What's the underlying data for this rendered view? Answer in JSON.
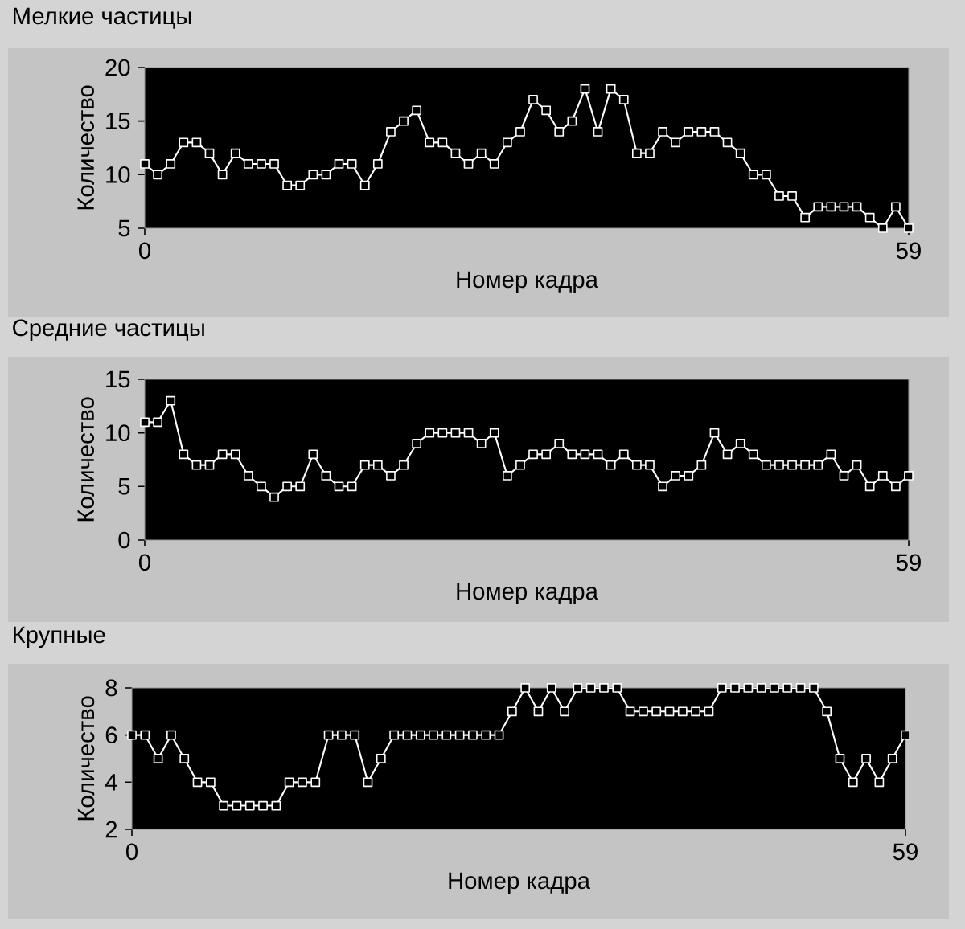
{
  "chart_data": [
    {
      "type": "line",
      "title": "Мелкие частицы",
      "xlabel": "Номер кадра",
      "ylabel": "Количество",
      "color": "#ffffff",
      "marker": "square",
      "x": [
        0,
        1,
        2,
        3,
        4,
        5,
        6,
        7,
        8,
        9,
        10,
        11,
        12,
        13,
        14,
        15,
        16,
        17,
        18,
        19,
        20,
        21,
        22,
        23,
        24,
        25,
        26,
        27,
        28,
        29,
        30,
        31,
        32,
        33,
        34,
        35,
        36,
        37,
        38,
        39,
        40,
        41,
        42,
        43,
        44,
        45,
        46,
        47,
        48,
        49,
        50,
        51,
        52,
        53,
        54,
        55,
        56,
        57,
        58,
        59
      ],
      "values": [
        11,
        10,
        11,
        13,
        13,
        12,
        10,
        12,
        11,
        11,
        11,
        9,
        9,
        10,
        10,
        11,
        11,
        9,
        11,
        14,
        15,
        16,
        13,
        13,
        12,
        11,
        12,
        11,
        13,
        14,
        17,
        16,
        14,
        15,
        18,
        14,
        18,
        17,
        12,
        12,
        14,
        13,
        14,
        14,
        14,
        13,
        12,
        10,
        10,
        8,
        8,
        6,
        7,
        7,
        7,
        7,
        6,
        5,
        7,
        5
      ],
      "xlim": [
        0,
        59
      ],
      "xticks": [
        0,
        59
      ],
      "ylim": [
        5,
        20
      ],
      "yticks": [
        5,
        10,
        15,
        20
      ]
    },
    {
      "type": "line",
      "title": "Средние частицы",
      "xlabel": "Номер кадра",
      "ylabel": "Количество",
      "color": "#ffffff",
      "marker": "square",
      "x": [
        0,
        1,
        2,
        3,
        4,
        5,
        6,
        7,
        8,
        9,
        10,
        11,
        12,
        13,
        14,
        15,
        16,
        17,
        18,
        19,
        20,
        21,
        22,
        23,
        24,
        25,
        26,
        27,
        28,
        29,
        30,
        31,
        32,
        33,
        34,
        35,
        36,
        37,
        38,
        39,
        40,
        41,
        42,
        43,
        44,
        45,
        46,
        47,
        48,
        49,
        50,
        51,
        52,
        53,
        54,
        55,
        56,
        57,
        58,
        59
      ],
      "values": [
        11,
        11,
        13,
        8,
        7,
        7,
        8,
        8,
        6,
        5,
        4,
        5,
        5,
        8,
        6,
        5,
        5,
        7,
        7,
        6,
        7,
        9,
        10,
        10,
        10,
        10,
        9,
        10,
        6,
        7,
        8,
        8,
        9,
        8,
        8,
        8,
        7,
        8,
        7,
        7,
        5,
        6,
        6,
        7,
        10,
        8,
        9,
        8,
        7,
        7,
        7,
        7,
        7,
        8,
        6,
        7,
        5,
        6,
        5,
        6
      ],
      "xlim": [
        0,
        59
      ],
      "xticks": [
        0,
        59
      ],
      "ylim": [
        0,
        15
      ],
      "yticks": [
        0,
        5,
        10,
        15
      ]
    },
    {
      "type": "line",
      "title": "Крупные",
      "xlabel": "Номер кадра",
      "ylabel": "Количество",
      "color": "#ffffff",
      "marker": "square",
      "x": [
        0,
        1,
        2,
        3,
        4,
        5,
        6,
        7,
        8,
        9,
        10,
        11,
        12,
        13,
        14,
        15,
        16,
        17,
        18,
        19,
        20,
        21,
        22,
        23,
        24,
        25,
        26,
        27,
        28,
        29,
        30,
        31,
        32,
        33,
        34,
        35,
        36,
        37,
        38,
        39,
        40,
        41,
        42,
        43,
        44,
        45,
        46,
        47,
        48,
        49,
        50,
        51,
        52,
        53,
        54,
        55,
        56,
        57,
        58,
        59
      ],
      "values": [
        6,
        6,
        5,
        6,
        5,
        4,
        4,
        3,
        3,
        3,
        3,
        3,
        4,
        4,
        4,
        6,
        6,
        6,
        4,
        5,
        6,
        6,
        6,
        6,
        6,
        6,
        6,
        6,
        6,
        7,
        8,
        7,
        8,
        7,
        8,
        8,
        8,
        8,
        7,
        7,
        7,
        7,
        7,
        7,
        7,
        8,
        8,
        8,
        8,
        8,
        8,
        8,
        8,
        7,
        5,
        4,
        5,
        4,
        5,
        6
      ],
      "xlim": [
        0,
        59
      ],
      "xticks": [
        0,
        59
      ],
      "ylim": [
        2,
        8
      ],
      "yticks": [
        2,
        4,
        6,
        8
      ]
    }
  ]
}
